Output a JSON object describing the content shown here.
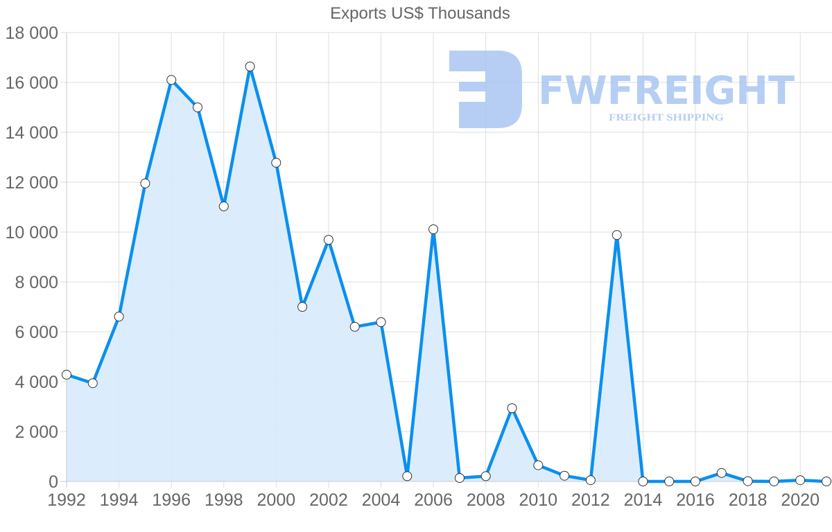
{
  "chart_data": {
    "type": "area",
    "title": "Exports US$ Thousands",
    "xlabel": "",
    "ylabel": "",
    "x": [
      1992,
      1993,
      1994,
      1995,
      1996,
      1997,
      1998,
      1999,
      2000,
      2001,
      2002,
      2003,
      2004,
      2005,
      2006,
      2007,
      2008,
      2009,
      2010,
      2011,
      2012,
      2013,
      2014,
      2015,
      2016,
      2017,
      2018,
      2019,
      2020,
      2021
    ],
    "series": [
      {
        "name": "Exports US$ Thousands",
        "values": [
          4280,
          3940,
          6610,
          11950,
          16100,
          15000,
          11030,
          16640,
          12780,
          7000,
          9690,
          6200,
          6390,
          210,
          10110,
          140,
          210,
          2940,
          650,
          230,
          50,
          9880,
          0,
          0,
          0,
          340,
          10,
          0,
          50,
          0
        ]
      }
    ],
    "ylim": [
      0,
      18000
    ],
    "xlim": [
      1992,
      2021
    ],
    "y_ticks": [
      "0",
      "2 000",
      "4 000",
      "6 000",
      "8 000",
      "10 000",
      "12 000",
      "14 000",
      "16 000",
      "18 000"
    ],
    "y_tick_values": [
      0,
      2000,
      4000,
      6000,
      8000,
      10000,
      12000,
      14000,
      16000,
      18000
    ],
    "x_ticks": [
      "1992",
      "1994",
      "1996",
      "1998",
      "2000",
      "2002",
      "2004",
      "2006",
      "2008",
      "2010",
      "2012",
      "2014",
      "2016",
      "2018",
      "2020"
    ],
    "x_tick_values": [
      1992,
      1994,
      1996,
      1998,
      2000,
      2002,
      2004,
      2006,
      2008,
      2010,
      2012,
      2014,
      2016,
      2018,
      2020
    ],
    "grid": true,
    "legend": "none"
  },
  "colors": {
    "line": "#0a8ff0",
    "fill": "#d7ebfc",
    "grid": "#dddddd",
    "axis_text": "#666666",
    "marker_fill": "#ffffff",
    "marker_stroke": "#333333",
    "watermark": "#a9c6f2"
  },
  "watermark": {
    "brand": "FWFREIGHT",
    "tagline": "FREIGHT SHIPPING",
    "icon": "fwfreight-logo-icon"
  }
}
